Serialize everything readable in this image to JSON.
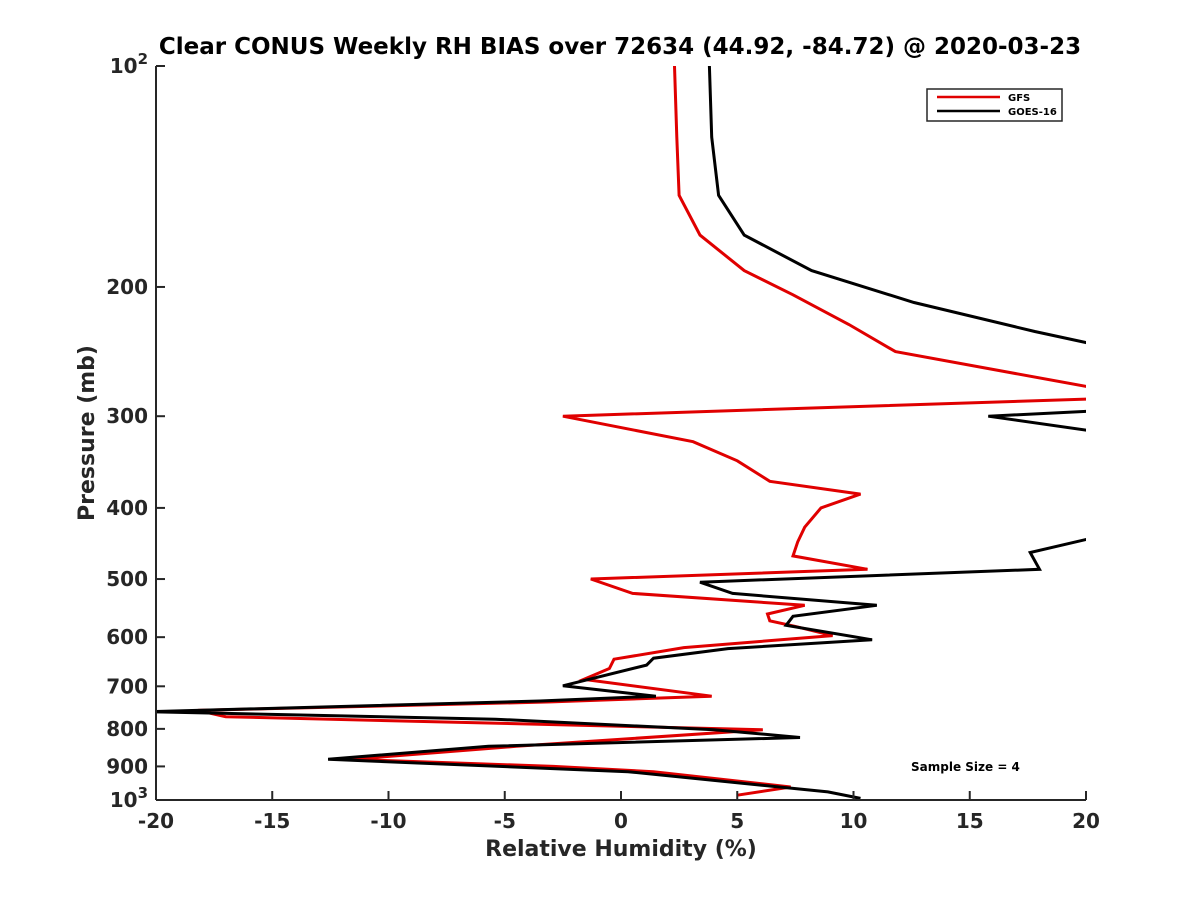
{
  "chart_data": {
    "type": "line",
    "title": "Clear CONUS Weekly RH BIAS over 72634 (44.92, -84.72) @ 2020-03-23",
    "xlabel": "Relative Humidity (%)",
    "ylabel": "Pressure (mb)",
    "xlim": [
      -20,
      20
    ],
    "ylim": [
      100,
      1000
    ],
    "yscale": "log",
    "y_reversed": true,
    "x_ticks": [
      -20,
      -15,
      -10,
      -5,
      0,
      5,
      10,
      15,
      20
    ],
    "x_tick_labels": [
      "-20",
      "-15",
      "-10",
      "-5",
      "0",
      "5",
      "10",
      "15",
      "20"
    ],
    "y_ticks": [
      100,
      200,
      300,
      400,
      500,
      600,
      700,
      800,
      900,
      1000
    ],
    "y_tick_labels": [
      {
        "base": "10",
        "exp": "2"
      },
      {
        "base": "200",
        "exp": ""
      },
      {
        "base": "300",
        "exp": ""
      },
      {
        "base": "400",
        "exp": ""
      },
      {
        "base": "500",
        "exp": ""
      },
      {
        "base": "600",
        "exp": ""
      },
      {
        "base": "700",
        "exp": ""
      },
      {
        "base": "800",
        "exp": ""
      },
      {
        "base": "900",
        "exp": ""
      },
      {
        "base": "10",
        "exp": "3"
      }
    ],
    "grid": false,
    "legend_position": "top-right",
    "annotation": "Sample Size = 4",
    "series": [
      {
        "name": "GFS",
        "color": "#e00000",
        "points": [
          [
            2.3,
            100
          ],
          [
            2.4,
            125
          ],
          [
            2.5,
            150
          ],
          [
            3.4,
            170
          ],
          [
            5.3,
            190
          ],
          [
            7.4,
            205
          ],
          [
            9.8,
            225
          ],
          [
            11.8,
            245
          ],
          [
            20.5,
            275
          ],
          [
            20.5,
            284
          ],
          [
            -2.5,
            300
          ],
          [
            3.1,
            325
          ],
          [
            5.0,
            345
          ],
          [
            6.4,
            368
          ],
          [
            10.3,
            383
          ],
          [
            8.6,
            400
          ],
          [
            7.9,
            425
          ],
          [
            7.6,
            445
          ],
          [
            7.4,
            465
          ],
          [
            10.6,
            485
          ],
          [
            -1.3,
            500
          ],
          [
            0.5,
            523
          ],
          [
            7.9,
            543
          ],
          [
            6.3,
            558
          ],
          [
            6.4,
            570
          ],
          [
            7.5,
            580
          ],
          [
            9.1,
            597
          ],
          [
            2.7,
            620
          ],
          [
            -0.3,
            643
          ],
          [
            -0.5,
            662
          ],
          [
            -1.6,
            685
          ],
          [
            3.9,
            722
          ],
          [
            -3.0,
            735
          ],
          [
            -18.2,
            755
          ],
          [
            -17.0,
            770
          ],
          [
            6.1,
            802
          ],
          [
            -4.5,
            845
          ],
          [
            -11.6,
            880
          ],
          [
            -2.9,
            900
          ],
          [
            1.4,
            915
          ],
          [
            7.3,
            960
          ],
          [
            5.0,
            985
          ]
        ]
      },
      {
        "name": "GOES-16",
        "color": "#000000",
        "points": [
          [
            3.8,
            100
          ],
          [
            3.9,
            125
          ],
          [
            4.2,
            150
          ],
          [
            5.3,
            170
          ],
          [
            8.2,
            190
          ],
          [
            12.6,
            210
          ],
          [
            17.8,
            230
          ],
          [
            20.5,
            240
          ],
          [
            20.5,
            295
          ],
          [
            15.8,
            300
          ],
          [
            20.5,
            315
          ],
          [
            20.5,
            438
          ],
          [
            17.6,
            460
          ],
          [
            18.0,
            485
          ],
          [
            3.4,
            505
          ],
          [
            4.8,
            523
          ],
          [
            11.0,
            543
          ],
          [
            7.4,
            562
          ],
          [
            7.1,
            578
          ],
          [
            10.8,
            605
          ],
          [
            4.6,
            622
          ],
          [
            1.4,
            641
          ],
          [
            1.1,
            655
          ],
          [
            -2.5,
            699
          ],
          [
            1.5,
            722
          ],
          [
            -3.5,
            733
          ],
          [
            -20.3,
            758
          ],
          [
            -5.4,
            776
          ],
          [
            4.0,
            802
          ],
          [
            7.7,
            822
          ],
          [
            -5.7,
            845
          ],
          [
            -12.6,
            880
          ],
          [
            0.3,
            915
          ],
          [
            8.9,
            975
          ],
          [
            10.3,
            995
          ]
        ]
      }
    ]
  }
}
